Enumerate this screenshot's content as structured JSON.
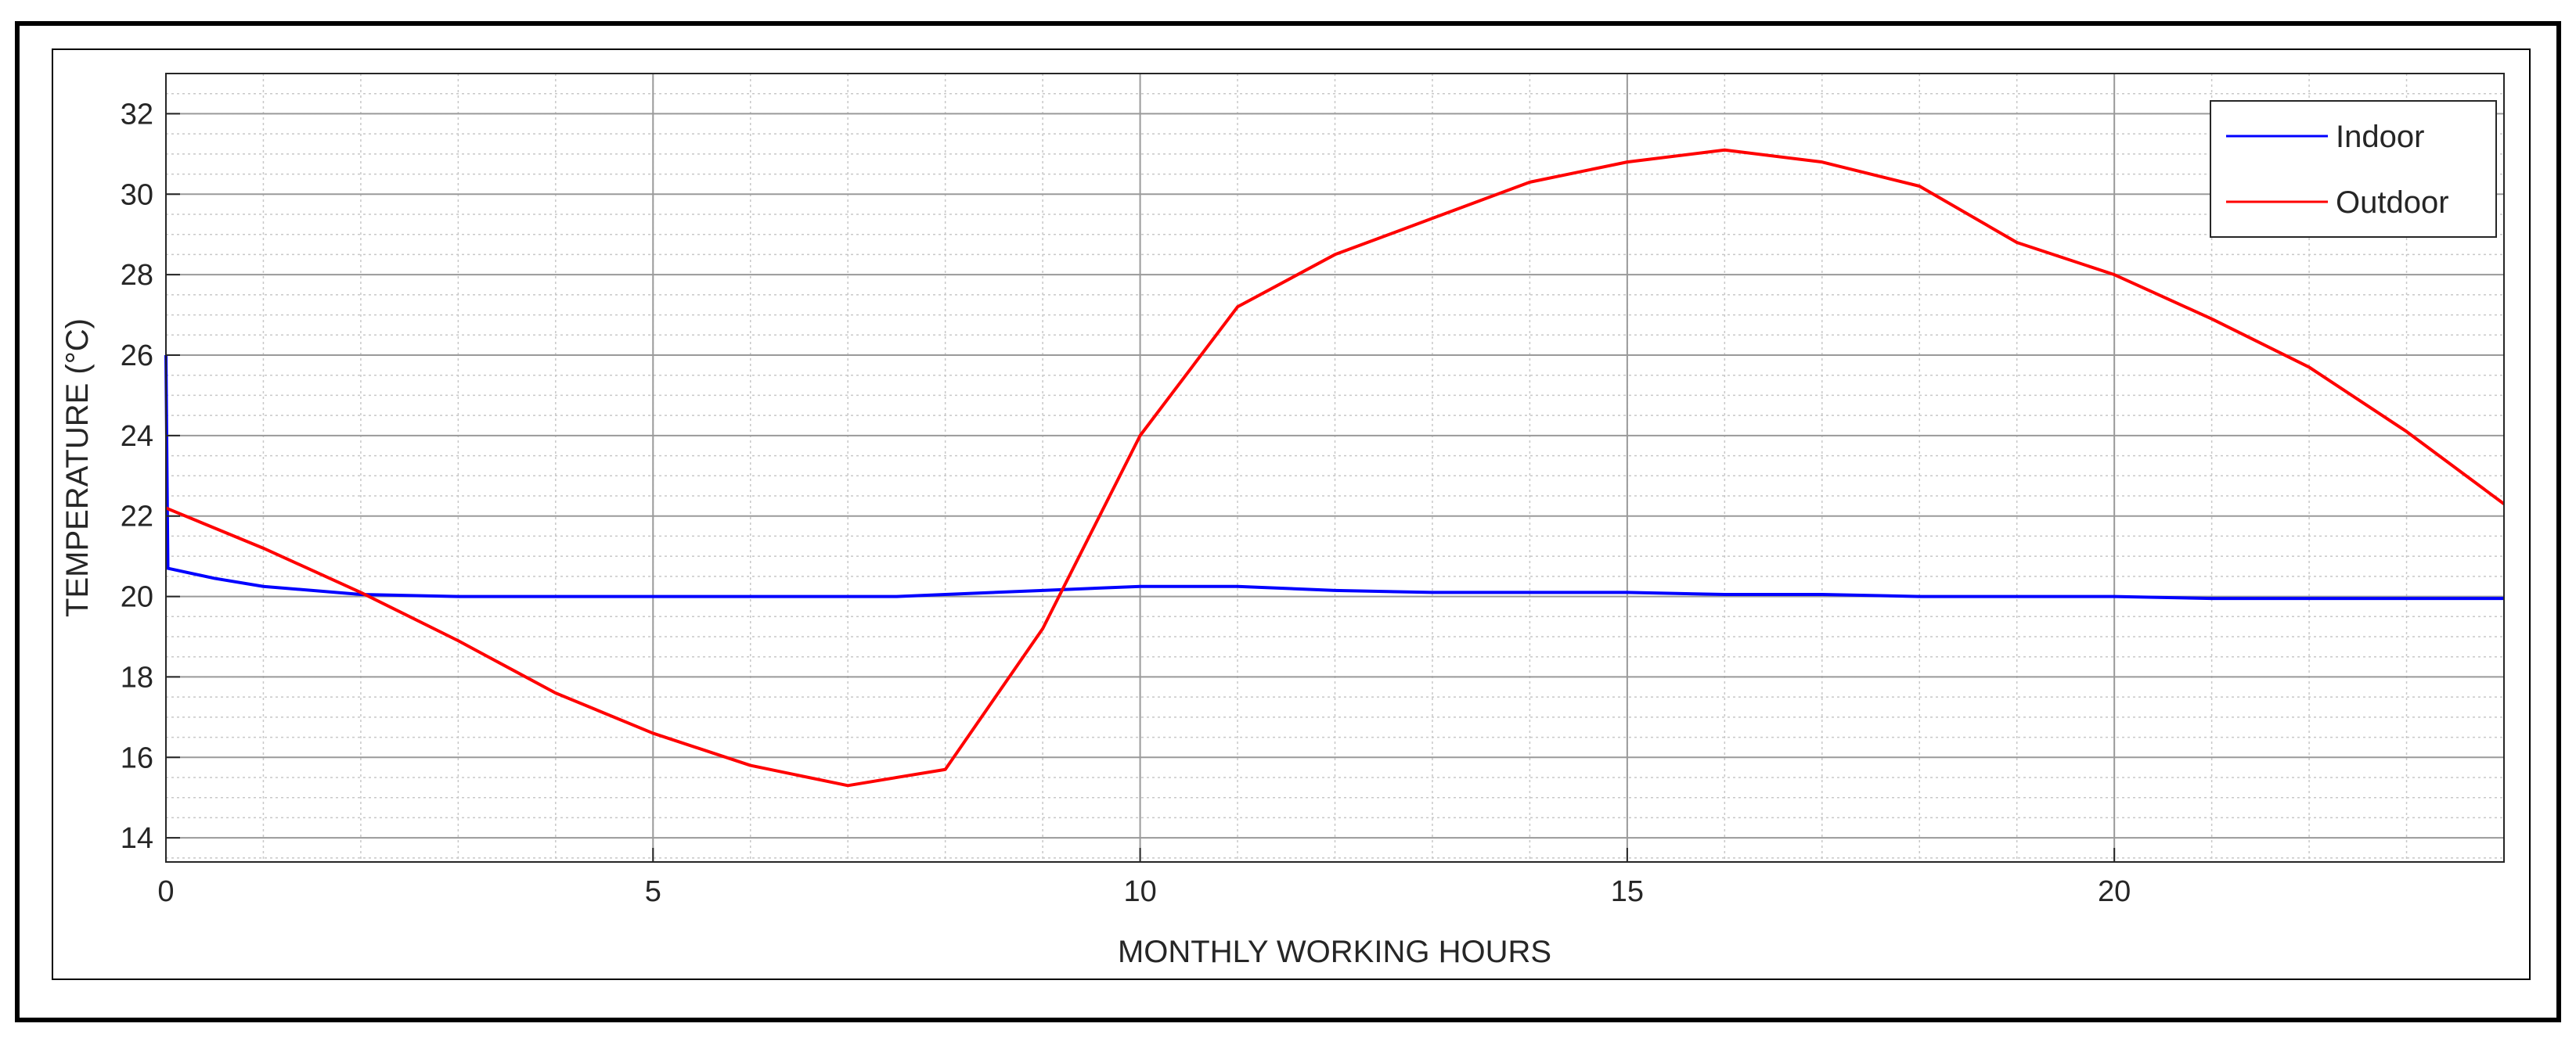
{
  "chart_data": {
    "type": "line",
    "x_label": "MONTHLY WORKING HOURS",
    "y_label": "TEMPERATURE (°C)",
    "xlim": [
      0,
      24
    ],
    "ylim": [
      13.4,
      33
    ],
    "xticks": [
      0,
      5,
      10,
      15,
      20
    ],
    "yticks": [
      14,
      16,
      18,
      20,
      22,
      24,
      26,
      28,
      30,
      32
    ],
    "grid": true,
    "minor_grid": true,
    "x_minor_step": 1,
    "y_minor_step": 0.5,
    "legend": "upper right",
    "series": [
      {
        "name": "Indoor",
        "color": "#0000ff",
        "x": [
          0,
          0.02,
          0.5,
          1,
          2,
          3,
          4,
          5,
          6,
          7,
          7.5,
          8,
          9,
          10,
          11,
          12,
          13,
          14,
          15,
          16,
          17,
          18,
          19,
          20,
          21,
          22,
          23,
          24
        ],
        "values": [
          26.0,
          20.7,
          20.45,
          20.25,
          20.05,
          20.0,
          20.0,
          20.0,
          20.0,
          20.0,
          20.0,
          20.05,
          20.15,
          20.25,
          20.25,
          20.15,
          20.1,
          20.1,
          20.1,
          20.05,
          20.05,
          20.0,
          20.0,
          20.0,
          19.95,
          19.95,
          19.95,
          19.95
        ]
      },
      {
        "name": "Outdoor",
        "color": "#ff0000",
        "x": [
          0,
          1,
          2,
          3,
          4,
          5,
          6,
          7,
          8,
          9,
          10,
          11,
          12,
          13,
          14,
          15,
          16,
          17,
          18,
          19,
          20,
          21,
          22,
          23,
          24
        ],
        "values": [
          22.2,
          21.2,
          20.1,
          18.9,
          17.6,
          16.6,
          15.8,
          15.3,
          15.7,
          19.2,
          24.0,
          27.2,
          28.5,
          29.4,
          30.3,
          30.8,
          31.1,
          30.8,
          30.2,
          28.8,
          28.0,
          26.9,
          25.7,
          24.1,
          22.3
        ]
      }
    ]
  }
}
